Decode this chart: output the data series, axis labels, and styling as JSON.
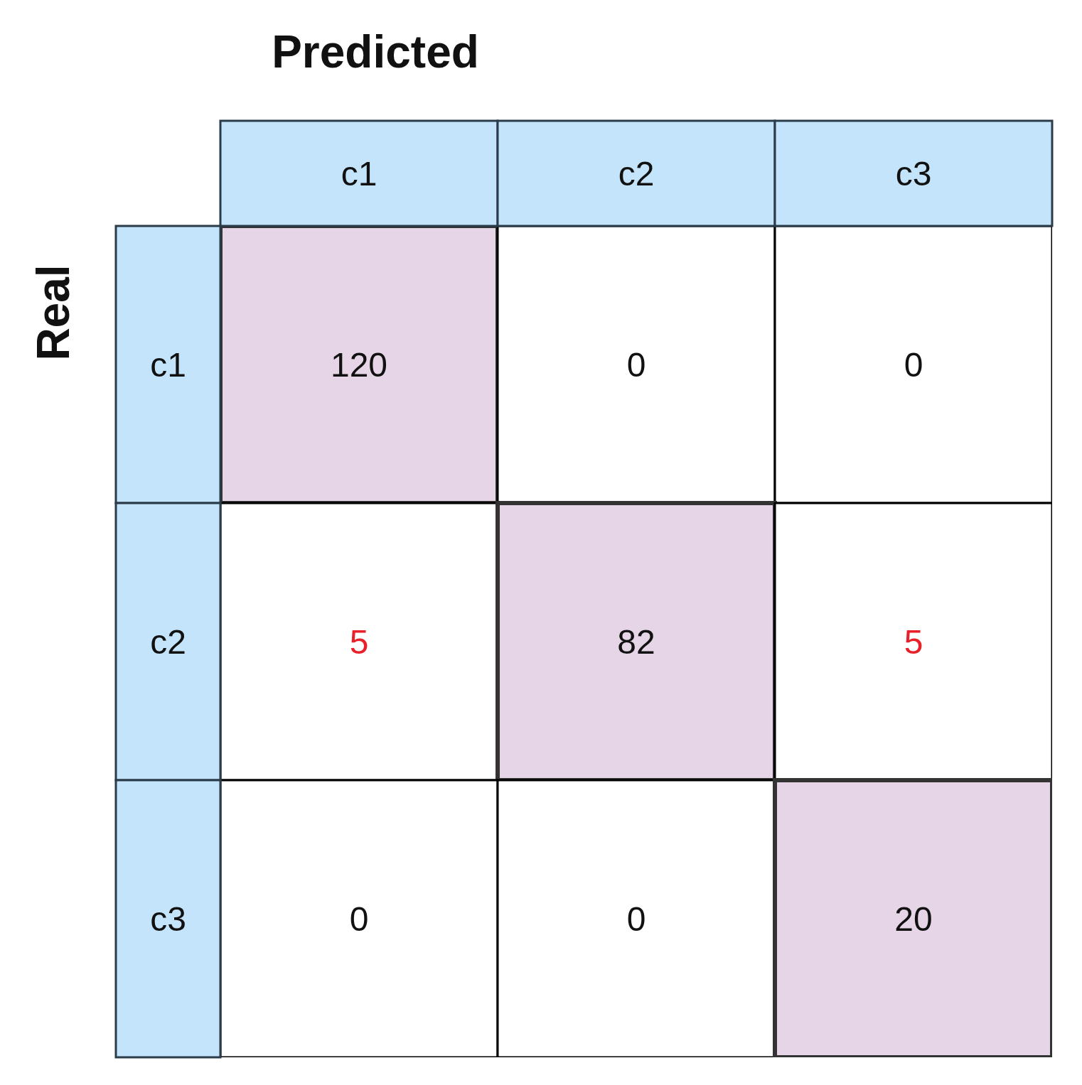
{
  "chart_data": {
    "type": "heatmap",
    "data_labels": true,
    "xlabel": "Predicted",
    "ylabel": "Real",
    "categories": [
      "c1",
      "c2",
      "c3"
    ],
    "y_categories": [
      "c1",
      "c2",
      "c3"
    ],
    "cells": [
      [
        120,
        0,
        0
      ],
      [
        5,
        82,
        5
      ],
      [
        0,
        0,
        20
      ]
    ],
    "colors": [
      [
        "#e6d5e6",
        "#ffffff",
        "#ffffff"
      ],
      [
        "#ffffff",
        "#e6d5e6",
        "#ffffff"
      ],
      [
        "#ffffff",
        "#ffffff",
        "#e6d5e6"
      ]
    ]
  }
}
